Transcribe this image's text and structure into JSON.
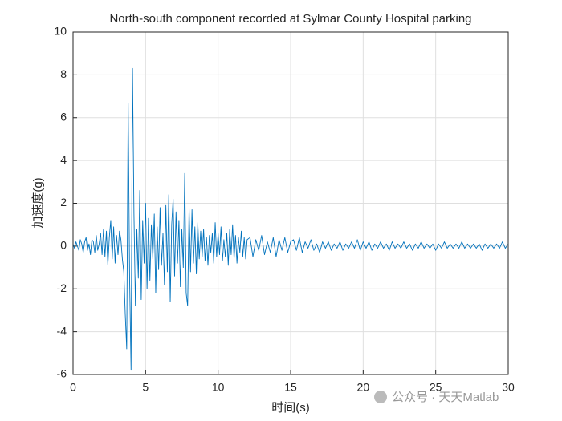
{
  "chart_data": {
    "type": "line",
    "title": "North-south component recorded at Sylmar County Hospital parking",
    "xlabel": "时间(s)",
    "ylabel": "加速度(g)",
    "watermark": "公众号 · 天天Matlab",
    "xlim": [
      0,
      30
    ],
    "xticks": [
      0,
      5,
      10,
      15,
      20,
      25,
      30
    ],
    "ylim": [
      -6,
      10
    ],
    "yticks": [
      -6,
      -4,
      -2,
      0,
      2,
      4,
      6,
      8,
      10
    ],
    "grid": true,
    "x": [
      0,
      0.1,
      0.2,
      0.3,
      0.4,
      0.5,
      0.6,
      0.7,
      0.8,
      0.9,
      1,
      1.1,
      1.2,
      1.3,
      1.4,
      1.5,
      1.6,
      1.7,
      1.8,
      1.9,
      2,
      2.1,
      2.2,
      2.3,
      2.4,
      2.5,
      2.6,
      2.7,
      2.8,
      2.9,
      3,
      3.1,
      3.2,
      3.3,
      3.4,
      3.5,
      3.6,
      3.7,
      3.8,
      3.9,
      4,
      4.1,
      4.2,
      4.3,
      4.4,
      4.5,
      4.6,
      4.7,
      4.8,
      4.9,
      5,
      5.1,
      5.2,
      5.3,
      5.4,
      5.5,
      5.6,
      5.7,
      5.8,
      5.9,
      6,
      6.1,
      6.2,
      6.3,
      6.4,
      6.5,
      6.6,
      6.7,
      6.8,
      6.9,
      7,
      7.1,
      7.2,
      7.3,
      7.4,
      7.5,
      7.6,
      7.7,
      7.8,
      7.9,
      8,
      8.1,
      8.2,
      8.3,
      8.4,
      8.5,
      8.6,
      8.7,
      8.8,
      8.9,
      9,
      9.1,
      9.2,
      9.3,
      9.4,
      9.5,
      9.6,
      9.7,
      9.8,
      9.9,
      10,
      10.1,
      10.2,
      10.3,
      10.4,
      10.5,
      10.6,
      10.7,
      10.8,
      10.9,
      11,
      11.1,
      11.2,
      11.3,
      11.4,
      11.5,
      11.6,
      11.7,
      11.8,
      11.9,
      12,
      12.2,
      12.4,
      12.6,
      12.8,
      13,
      13.2,
      13.4,
      13.6,
      13.8,
      14,
      14.2,
      14.4,
      14.6,
      14.8,
      15,
      15.2,
      15.4,
      15.6,
      15.8,
      16,
      16.2,
      16.4,
      16.6,
      16.8,
      17,
      17.2,
      17.4,
      17.6,
      17.8,
      18,
      18.2,
      18.4,
      18.6,
      18.8,
      19,
      19.2,
      19.4,
      19.6,
      19.8,
      20,
      20.2,
      20.4,
      20.6,
      20.8,
      21,
      21.2,
      21.4,
      21.6,
      21.8,
      22,
      22.2,
      22.4,
      22.6,
      22.8,
      23,
      23.2,
      23.4,
      23.6,
      23.8,
      24,
      24.2,
      24.4,
      24.6,
      24.8,
      25,
      25.2,
      25.4,
      25.6,
      25.8,
      26,
      26.2,
      26.4,
      26.6,
      26.8,
      27,
      27.2,
      27.4,
      27.6,
      27.8,
      28,
      28.2,
      28.4,
      28.6,
      28.8,
      29,
      29.2,
      29.4,
      29.6,
      29.8,
      30
    ],
    "series": [
      {
        "color": "#0072bd",
        "values": [
          0.1,
          -0.1,
          0.2,
          0,
          -0.2,
          0.3,
          0.1,
          -0.3,
          0.2,
          0.4,
          -0.2,
          0.1,
          -0.4,
          0.3,
          0.2,
          -0.3,
          0.5,
          -0.2,
          0.1,
          0.6,
          -0.4,
          0.8,
          -0.5,
          0.7,
          -0.9,
          0.4,
          1.2,
          -0.6,
          0.9,
          -0.8,
          0.5,
          -0.4,
          0.7,
          0.3,
          -0.6,
          -1.2,
          -3.2,
          -4.8,
          6.7,
          -1.5,
          -5.8,
          8.3,
          1.5,
          -2.8,
          0.8,
          -1.5,
          2.6,
          -2.5,
          1.2,
          -0.8,
          2.0,
          -2.0,
          1.3,
          -1.6,
          1.0,
          -0.6,
          1.5,
          -2.2,
          0.9,
          -1.1,
          1.8,
          -0.9,
          0.6,
          -1.8,
          1.9,
          -1.2,
          2.4,
          -2.6,
          1.0,
          2.2,
          -1.4,
          1.6,
          -0.8,
          1.2,
          -1.9,
          0.8,
          -1.0,
          3.4,
          -2.2,
          -2.8,
          1.8,
          -1.2,
          1.7,
          -0.8,
          0.9,
          -1.3,
          1.1,
          -0.6,
          0.7,
          -0.5,
          0.8,
          -0.7,
          0.4,
          -0.9,
          0.5,
          -0.3,
          0.6,
          -0.8,
          1.1,
          -0.5,
          0.6,
          -0.4,
          0.9,
          -0.7,
          0.3,
          -0.5,
          0.6,
          -0.9,
          0.8,
          -0.4,
          1.0,
          -0.6,
          0.5,
          -0.8,
          0.4,
          -0.3,
          0.7,
          -0.5,
          0.4,
          -0.6,
          0.3,
          0.4,
          -0.5,
          0.3,
          -0.2,
          0.5,
          -0.4,
          0.2,
          -0.3,
          0.4,
          -0.5,
          0.3,
          -0.2,
          0.4,
          -0.3,
          0.2,
          0.3,
          -0.2,
          0.4,
          -0.3,
          0.2,
          -0.1,
          0.3,
          -0.2,
          0.1,
          -0.3,
          0.2,
          -0.1,
          0.2,
          -0.2,
          0.1,
          -0.1,
          0.2,
          -0.2,
          0.1,
          -0.1,
          0.2,
          -0.1,
          0.3,
          -0.2,
          0.2,
          -0.1,
          0.2,
          -0.2,
          0.1,
          -0.1,
          0.2,
          -0.1,
          0.1,
          -0.2,
          0.2,
          -0.1,
          0.1,
          -0.1,
          0.2,
          -0.1,
          0.1,
          -0.2,
          0.1,
          -0.1,
          0.2,
          -0.1,
          0.1,
          -0.1,
          0.1,
          -0.2,
          0.1,
          -0.1,
          0.2,
          -0.1,
          0.1,
          -0.1,
          0.1,
          -0.1,
          0.2,
          -0.1,
          0.1,
          -0.1,
          0.1,
          -0.1,
          0.1,
          -0.2,
          0.1,
          -0.1,
          0.1,
          -0.1,
          0.1,
          -0.1,
          0.2,
          -0.1,
          0.1
        ]
      }
    ]
  }
}
